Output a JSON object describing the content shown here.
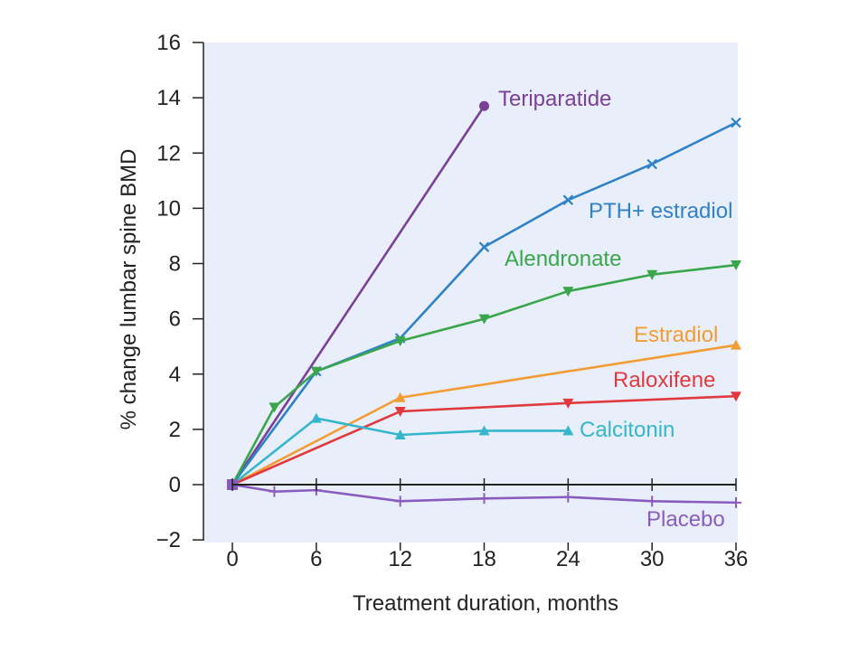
{
  "chart_data": {
    "type": "line",
    "xlabel": "Treatment duration, months",
    "ylabel": "% change lumbar spine BMD",
    "xlim": [
      0,
      36
    ],
    "ylim": [
      -2,
      16
    ],
    "x_ticks": [
      "0",
      "6",
      "12",
      "18",
      "24",
      "30",
      "36"
    ],
    "y_ticks": [
      "16",
      "14",
      "12",
      "10",
      "8",
      "6",
      "4",
      "2",
      "0",
      "−2"
    ],
    "background_color": "#e8effa",
    "grid": false,
    "legend": "direct labels at line ends",
    "series": [
      {
        "name": "Teriparatide",
        "color": "#7b3f98",
        "marker": "circle",
        "x": [
          0,
          18
        ],
        "y": [
          0,
          13.7
        ]
      },
      {
        "name": "PTH+ estradiol",
        "color": "#2f82c8",
        "marker": "x",
        "x": [
          0,
          6,
          12,
          18,
          24,
          30,
          36
        ],
        "y": [
          0,
          4.1,
          5.3,
          8.6,
          10.3,
          11.6,
          13.1
        ]
      },
      {
        "name": "Alendronate",
        "color": "#3aa64c",
        "marker": "triangle-down",
        "x": [
          0,
          3,
          6,
          12,
          18,
          24,
          30,
          36
        ],
        "y": [
          0,
          2.8,
          4.1,
          5.2,
          6.0,
          7.0,
          7.6,
          7.95
        ]
      },
      {
        "name": "Estradiol",
        "color": "#f39c33",
        "marker": "triangle-up",
        "x": [
          0,
          12,
          36
        ],
        "y": [
          0,
          3.15,
          5.05
        ]
      },
      {
        "name": "Raloxifene",
        "color": "#e03a3e",
        "marker": "triangle-down",
        "x": [
          0,
          12,
          24,
          36
        ],
        "y": [
          0,
          2.65,
          2.95,
          3.2
        ]
      },
      {
        "name": "Calcitonin",
        "color": "#35b6cc",
        "marker": "triangle-up",
        "x": [
          0,
          6,
          12,
          18,
          24
        ],
        "y": [
          0,
          2.4,
          1.8,
          1.95,
          1.95
        ]
      },
      {
        "name": "Placebo",
        "color": "#8a5cc0",
        "marker": "plus",
        "x": [
          0,
          3,
          6,
          12,
          18,
          24,
          30,
          36
        ],
        "y": [
          0,
          -0.25,
          -0.2,
          -0.6,
          -0.5,
          -0.45,
          -0.6,
          -0.65
        ]
      }
    ]
  }
}
